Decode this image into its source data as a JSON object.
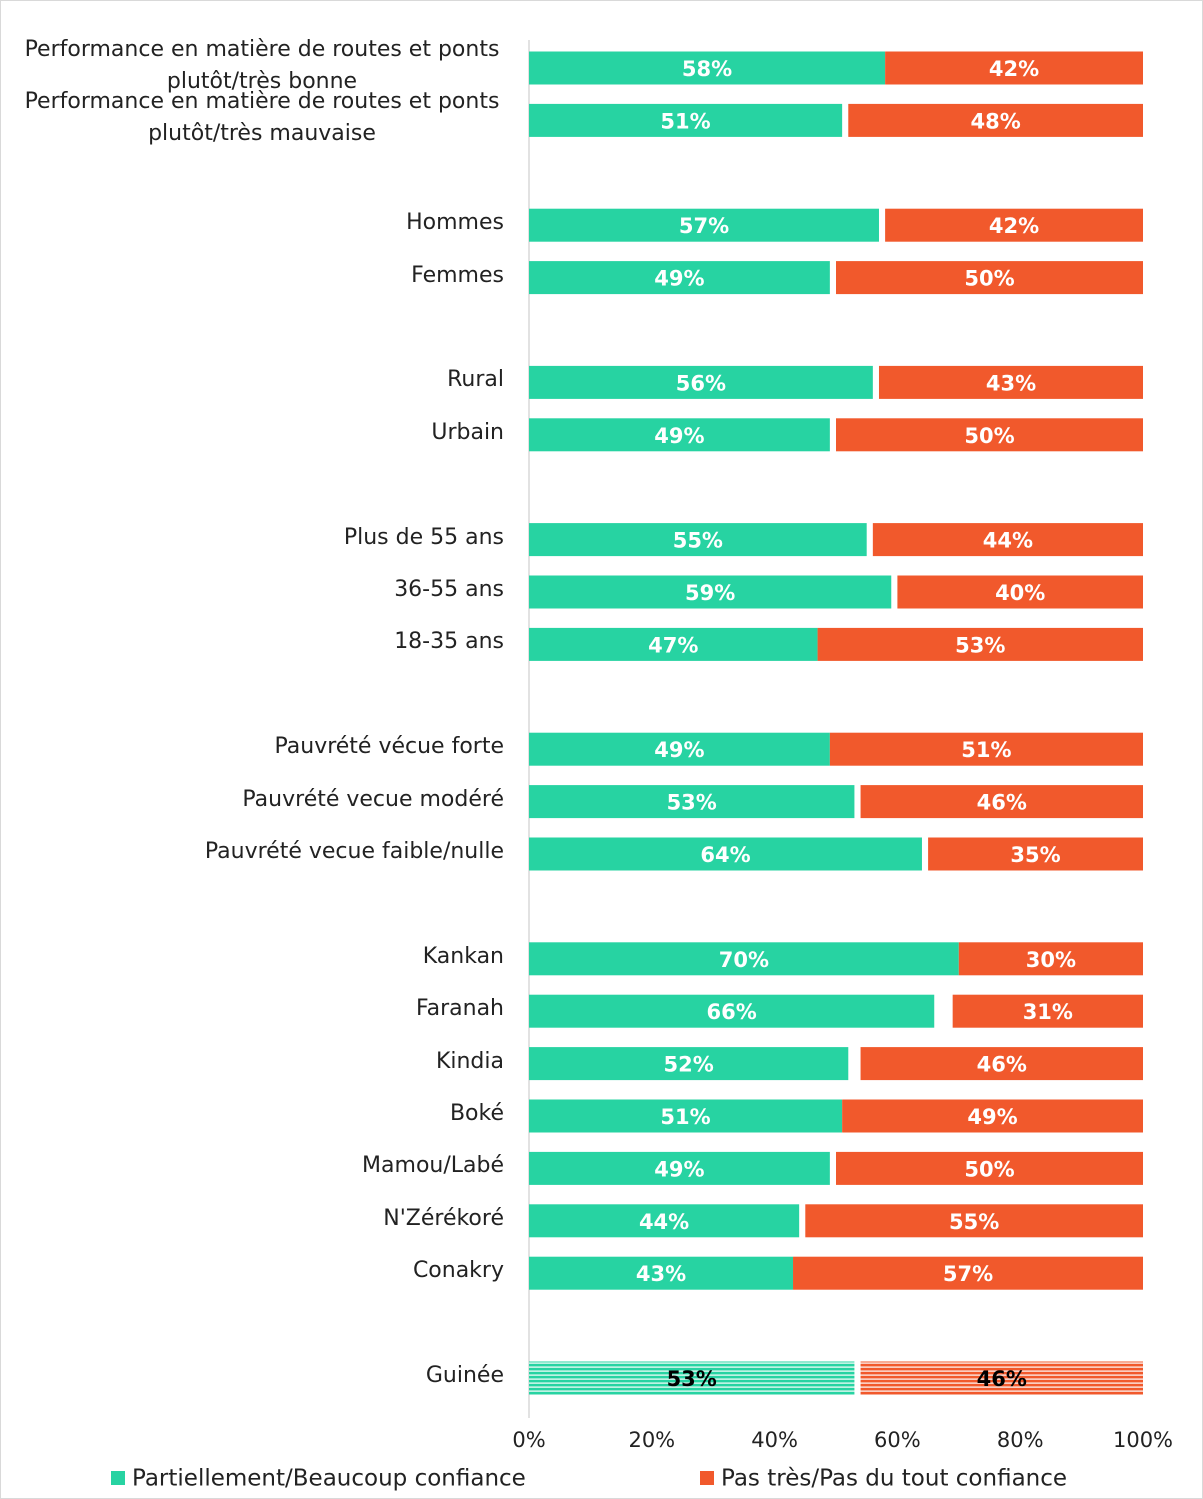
{
  "chart_data": {
    "type": "stacked-bar-horizontal",
    "categories": [
      "Performance en matière de routes et ponts plutôt/très bonne",
      "Performance en matière de routes et ponts plutôt/très mauvaise",
      null,
      "Hommes",
      "Femmes",
      null,
      "Rural",
      "Urbain",
      null,
      "Plus de 55 ans",
      "36-55 ans",
      "18-35 ans",
      null,
      "Pauvrété vécue forte",
      "Pauvrété vecue modéré",
      "Pauvrété vecue faible/nulle",
      null,
      "Kankan",
      "Faranah",
      "Kindia",
      "Boké",
      "Mamou/Labé",
      "N'Zérékoré",
      "Conakry",
      null,
      "Guinée"
    ],
    "series": [
      {
        "name": "Partiellement/Beaucoup confiance",
        "color": "#27d3a2",
        "values": [
          58,
          51,
          null,
          57,
          49,
          null,
          56,
          49,
          null,
          55,
          59,
          47,
          null,
          49,
          53,
          64,
          null,
          70,
          66,
          52,
          51,
          49,
          44,
          43,
          null,
          53
        ],
        "value_labels": [
          "58%",
          "51%",
          null,
          "57%",
          "49%",
          null,
          "56%",
          "49%",
          null,
          "55%",
          "59%",
          "47%",
          null,
          "49%",
          "53%",
          "64%",
          null,
          "70%",
          "66%",
          "52%",
          "51%",
          "49%",
          "44%",
          "43%",
          null,
          "53%"
        ]
      },
      {
        "name": "Pas très/Pas du tout confiance",
        "color": "#f1592c",
        "values": [
          42,
          48,
          null,
          42,
          50,
          null,
          43,
          50,
          null,
          44,
          40,
          53,
          null,
          51,
          46,
          35,
          null,
          30,
          31,
          46,
          49,
          50,
          55,
          57,
          null,
          46
        ],
        "value_labels": [
          "42%",
          "48%",
          null,
          "42%",
          "50%",
          null,
          "43%",
          "50%",
          null,
          "44%",
          "40%",
          "53%",
          null,
          "51%",
          "46%",
          "35%",
          null,
          "30%",
          "31%",
          "46%",
          "49%",
          "50%",
          "55%",
          "57%",
          null,
          "46%"
        ]
      }
    ],
    "xlim": [
      0,
      100
    ],
    "xticks": [
      {
        "value": 0,
        "label": "0%"
      },
      {
        "value": 20,
        "label": "20%"
      },
      {
        "value": 40,
        "label": "40%"
      },
      {
        "value": 60,
        "label": "60%"
      },
      {
        "value": 80,
        "label": "80%"
      },
      {
        "value": 100,
        "label": "100%"
      }
    ]
  }
}
